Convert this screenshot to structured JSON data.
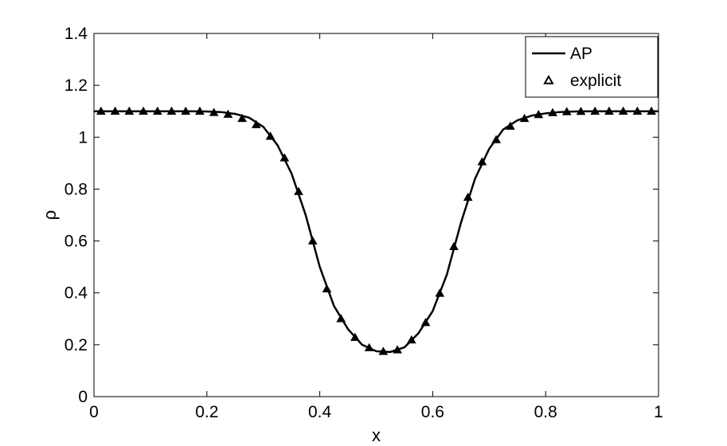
{
  "chart_data": {
    "type": "line",
    "xlabel": "x",
    "ylabel": "ρ",
    "xlim": [
      0,
      1
    ],
    "ylim": [
      0,
      1.4
    ],
    "xticks": [
      "0",
      "0.2",
      "0.4",
      "0.6",
      "0.8",
      "1"
    ],
    "xtick_values": [
      0,
      0.2,
      0.4,
      0.6,
      0.8,
      1
    ],
    "yticks": [
      "0",
      "0.2",
      "0.4",
      "0.6",
      "0.8",
      "1",
      "1.2",
      "1.4"
    ],
    "ytick_values": [
      0,
      0.2,
      0.4,
      0.6,
      0.8,
      1,
      1.2,
      1.4
    ],
    "grid": false,
    "legend_position": "top-right",
    "series": [
      {
        "name": "AP",
        "style": "solid-line",
        "color": "#000000",
        "x": [
          0.0,
          0.025,
          0.05,
          0.075,
          0.1,
          0.125,
          0.15,
          0.175,
          0.2,
          0.225,
          0.25,
          0.275,
          0.3,
          0.325,
          0.35,
          0.375,
          0.4,
          0.425,
          0.45,
          0.475,
          0.5,
          0.525,
          0.55,
          0.575,
          0.6,
          0.625,
          0.65,
          0.675,
          0.7,
          0.725,
          0.75,
          0.775,
          0.8,
          0.825,
          0.85,
          0.875,
          0.9,
          0.925,
          0.95,
          0.975,
          1.0
        ],
        "y": [
          1.1,
          1.1,
          1.1,
          1.1,
          1.1,
          1.1,
          1.1,
          1.1,
          1.099,
          1.097,
          1.09,
          1.075,
          1.04,
          0.97,
          0.86,
          0.7,
          0.5,
          0.35,
          0.26,
          0.2,
          0.175,
          0.172,
          0.19,
          0.245,
          0.33,
          0.47,
          0.67,
          0.84,
          0.955,
          1.03,
          1.065,
          1.083,
          1.092,
          1.097,
          1.099,
          1.1,
          1.1,
          1.1,
          1.1,
          1.1,
          1.1
        ]
      },
      {
        "name": "explicit",
        "style": "triangle-markers",
        "color": "#000000",
        "x": [
          0.0125,
          0.0375,
          0.0625,
          0.0875,
          0.1125,
          0.1375,
          0.1625,
          0.1875,
          0.2125,
          0.2375,
          0.2625,
          0.2875,
          0.3125,
          0.3375,
          0.3625,
          0.3875,
          0.4125,
          0.4375,
          0.4625,
          0.4875,
          0.5125,
          0.5375,
          0.5625,
          0.5875,
          0.6125,
          0.6375,
          0.6625,
          0.6875,
          0.7125,
          0.7375,
          0.7625,
          0.7875,
          0.8125,
          0.8375,
          0.8625,
          0.8875,
          0.9125,
          0.9375,
          0.9625,
          0.9875
        ],
        "y": [
          1.1,
          1.1,
          1.1,
          1.1,
          1.1,
          1.1,
          1.1,
          1.1,
          1.095,
          1.088,
          1.072,
          1.048,
          1.003,
          0.92,
          0.79,
          0.6,
          0.415,
          0.3,
          0.228,
          0.188,
          0.174,
          0.18,
          0.218,
          0.285,
          0.398,
          0.578,
          0.768,
          0.905,
          0.99,
          1.042,
          1.072,
          1.087,
          1.094,
          1.098,
          1.099,
          1.1,
          1.1,
          1.1,
          1.1,
          1.1
        ]
      }
    ]
  }
}
